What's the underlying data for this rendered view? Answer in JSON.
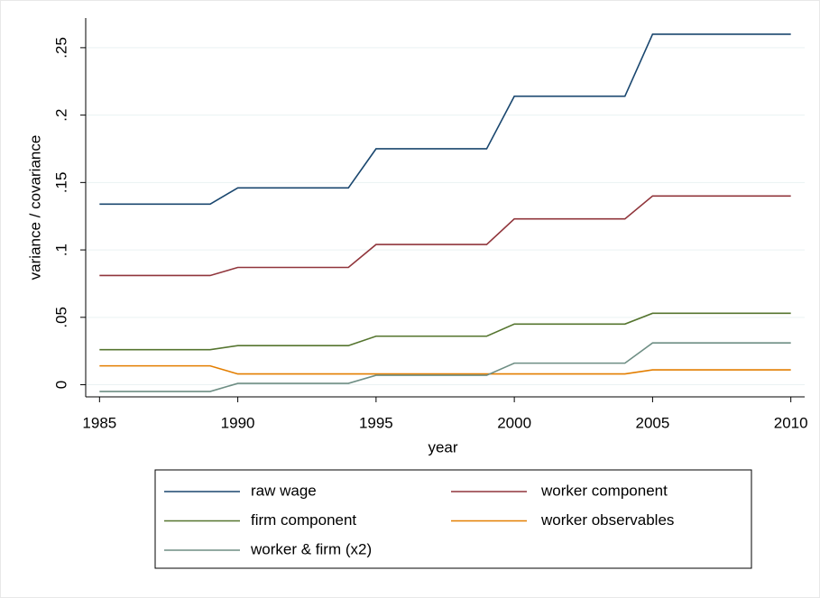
{
  "chart_data": {
    "type": "line",
    "x": [
      1985,
      1986,
      1987,
      1988,
      1989,
      1990,
      1991,
      1992,
      1993,
      1994,
      1995,
      1996,
      1997,
      1998,
      1999,
      2000,
      2001,
      2002,
      2003,
      2004,
      2005,
      2006,
      2007,
      2008,
      2009,
      2010
    ],
    "series": [
      {
        "name": "raw wage",
        "color": "#1a476f",
        "values": [
          0.134,
          0.134,
          0.134,
          0.134,
          0.134,
          0.146,
          0.146,
          0.146,
          0.146,
          0.146,
          0.175,
          0.175,
          0.175,
          0.175,
          0.175,
          0.214,
          0.214,
          0.214,
          0.214,
          0.214,
          0.26,
          0.26,
          0.26,
          0.26,
          0.26,
          0.26
        ]
      },
      {
        "name": "worker component",
        "color": "#90353b",
        "values": [
          0.081,
          0.081,
          0.081,
          0.081,
          0.081,
          0.087,
          0.087,
          0.087,
          0.087,
          0.087,
          0.104,
          0.104,
          0.104,
          0.104,
          0.104,
          0.123,
          0.123,
          0.123,
          0.123,
          0.123,
          0.14,
          0.14,
          0.14,
          0.14,
          0.14,
          0.14
        ]
      },
      {
        "name": "firm component",
        "color": "#55752f",
        "values": [
          0.026,
          0.026,
          0.026,
          0.026,
          0.026,
          0.029,
          0.029,
          0.029,
          0.029,
          0.029,
          0.036,
          0.036,
          0.036,
          0.036,
          0.036,
          0.045,
          0.045,
          0.045,
          0.045,
          0.045,
          0.053,
          0.053,
          0.053,
          0.053,
          0.053,
          0.053
        ]
      },
      {
        "name": "worker observables",
        "color": "#e37e00",
        "values": [
          0.014,
          0.014,
          0.014,
          0.014,
          0.014,
          0.008,
          0.008,
          0.008,
          0.008,
          0.008,
          0.008,
          0.008,
          0.008,
          0.008,
          0.008,
          0.008,
          0.008,
          0.008,
          0.008,
          0.008,
          0.011,
          0.011,
          0.011,
          0.011,
          0.011,
          0.011
        ]
      },
      {
        "name": "worker & firm (x2)",
        "color": "#6e8e84",
        "values": [
          -0.005,
          -0.005,
          -0.005,
          -0.005,
          -0.005,
          0.001,
          0.001,
          0.001,
          0.001,
          0.001,
          0.007,
          0.007,
          0.007,
          0.007,
          0.007,
          0.016,
          0.016,
          0.016,
          0.016,
          0.016,
          0.031,
          0.031,
          0.031,
          0.031,
          0.031,
          0.031
        ]
      }
    ],
    "xlabel": "year",
    "ylabel": "variance / covariance",
    "xlim": [
      1984.5,
      2010.5
    ],
    "xticks": [
      1985,
      1990,
      1995,
      2000,
      2005,
      2010
    ],
    "ylim": [
      -0.009,
      0.272
    ],
    "yticks": [
      0,
      {
        "value": 0.05,
        "label": ".05"
      },
      {
        "value": 0.1,
        "label": ".1"
      },
      {
        "value": 0.15,
        "label": ".15"
      },
      {
        "value": 0.2,
        "label": ".2"
      },
      {
        "value": 0.25,
        "label": ".25"
      }
    ],
    "grid": true,
    "legend": "bottom"
  }
}
